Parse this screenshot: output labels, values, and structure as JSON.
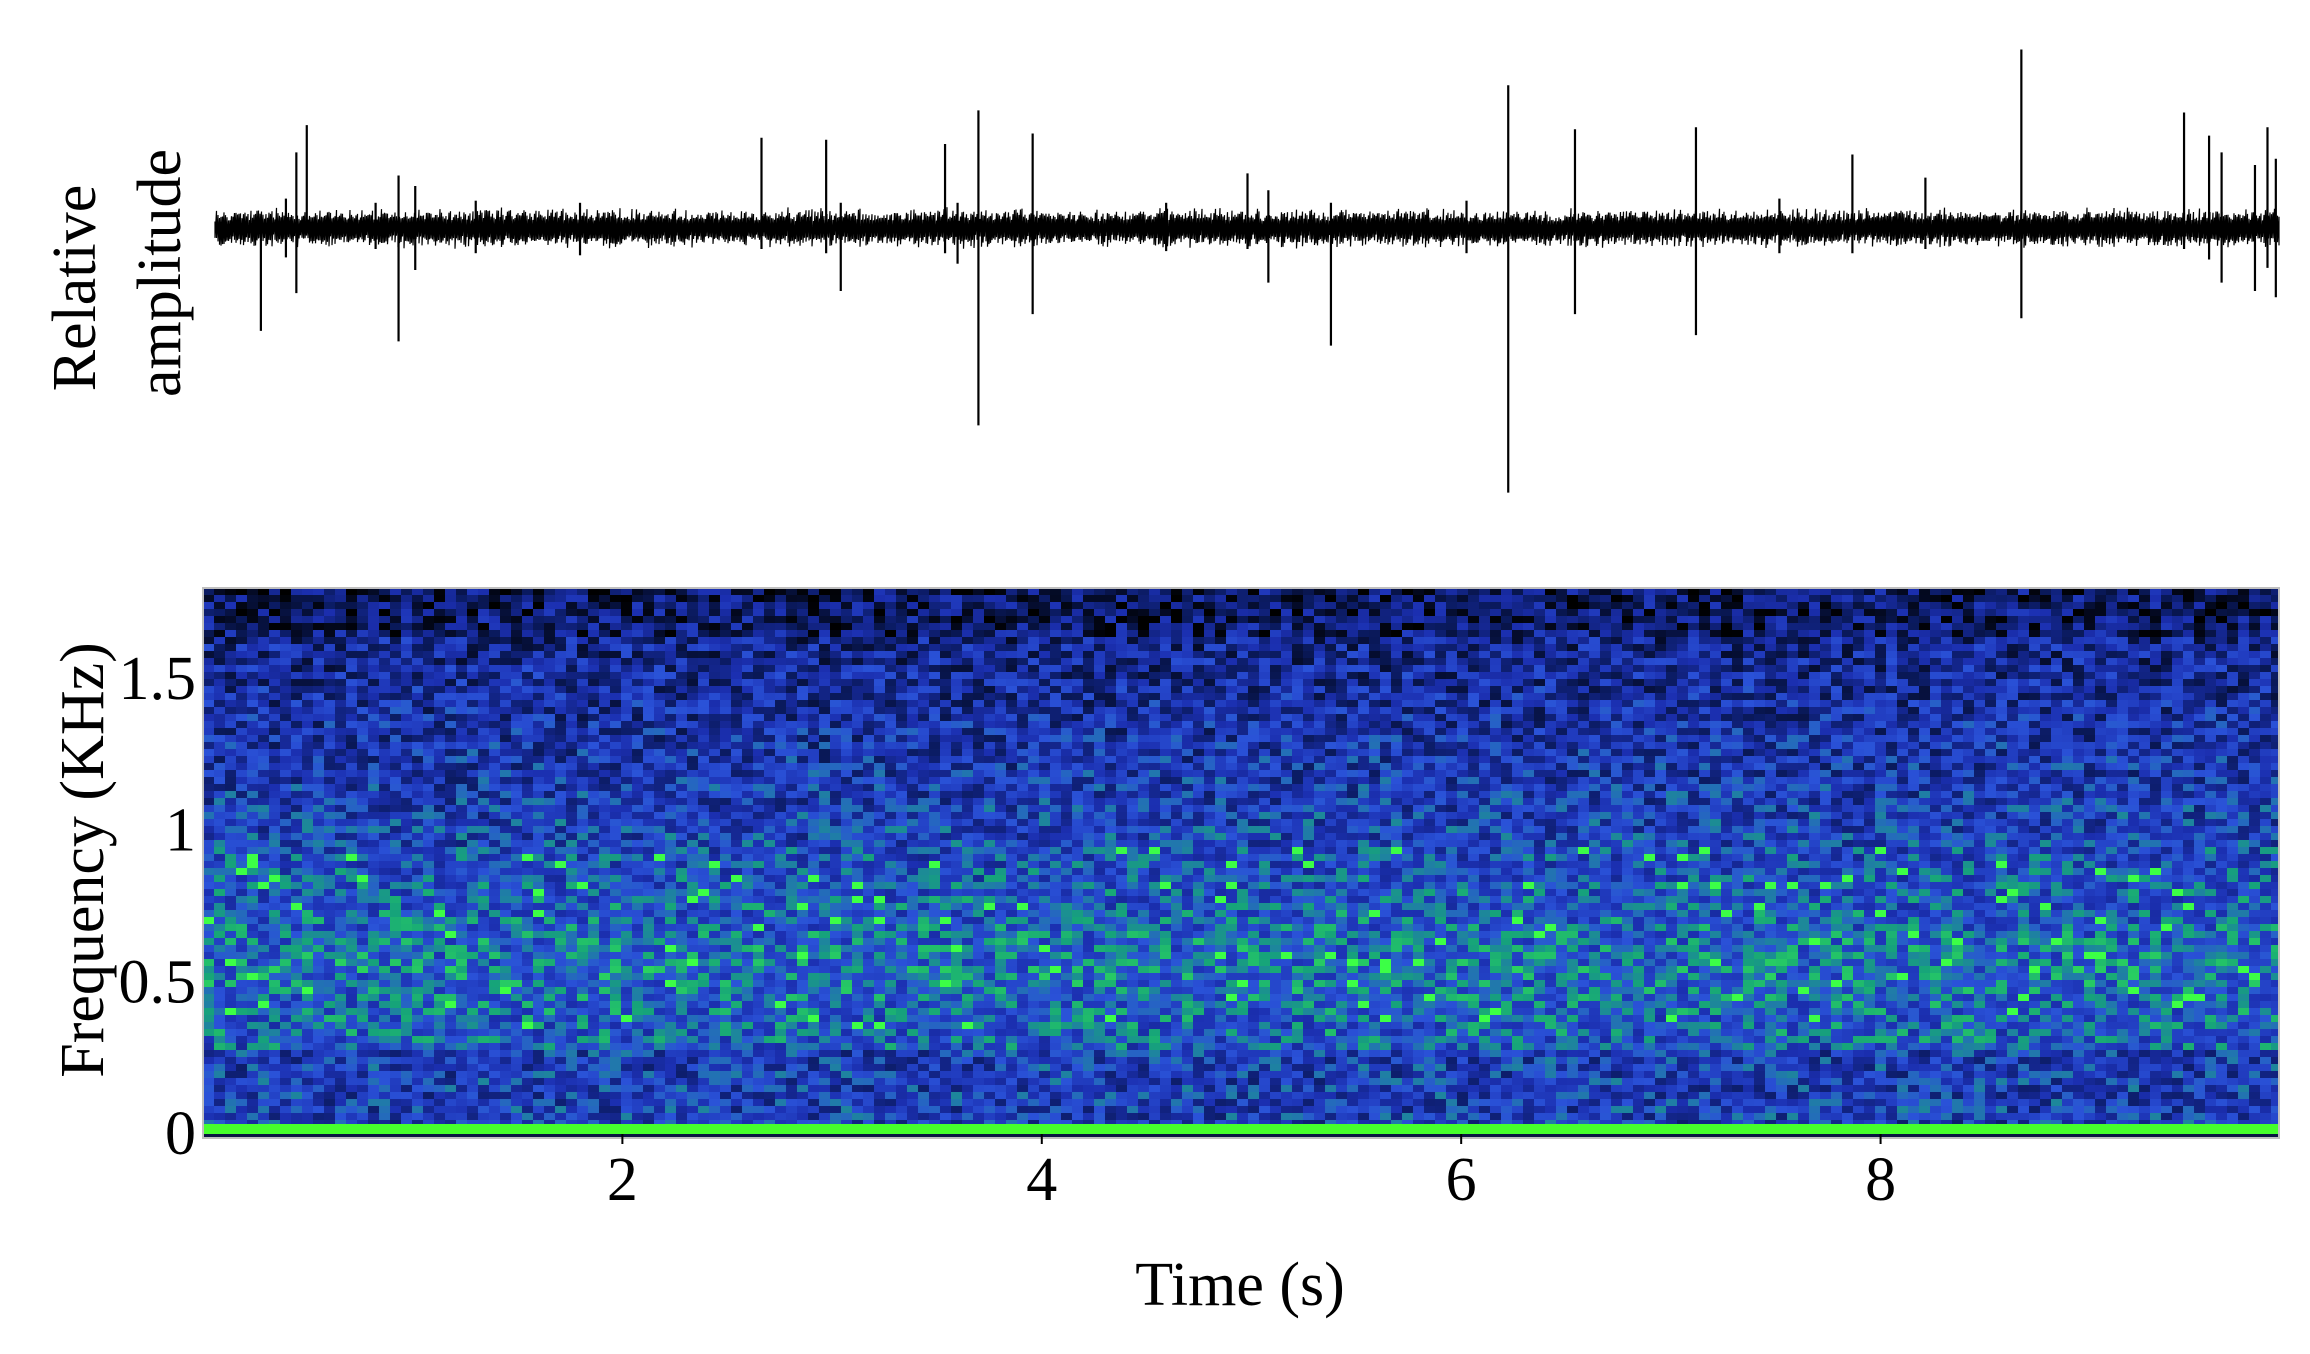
{
  "chart_data": [
    {
      "type": "line",
      "panel": "waveform",
      "title": "",
      "ylabel_lines": [
        "Relative",
        "amplitude"
      ],
      "xlim": [
        0,
        9.9
      ],
      "baseline_noise_amplitude": 0.1,
      "series": [
        {
          "color": "#000000",
          "spikes": [
            {
              "t": 0.22,
              "up": 0.0,
              "down": -0.49
            },
            {
              "t": 0.34,
              "up": 0.14,
              "down": -0.14
            },
            {
              "t": 0.39,
              "up": 0.36,
              "down": -0.31
            },
            {
              "t": 0.44,
              "up": 0.49,
              "down": 0.0
            },
            {
              "t": 0.77,
              "up": 0.12,
              "down": -0.1
            },
            {
              "t": 0.88,
              "up": 0.25,
              "down": -0.54
            },
            {
              "t": 0.96,
              "up": 0.2,
              "down": -0.2
            },
            {
              "t": 1.25,
              "up": 0.13,
              "down": -0.12
            },
            {
              "t": 1.75,
              "up": 0.12,
              "down": -0.13
            },
            {
              "t": 2.62,
              "up": 0.43,
              "down": -0.1
            },
            {
              "t": 2.93,
              "up": 0.42,
              "down": -0.12
            },
            {
              "t": 3.0,
              "up": 0.12,
              "down": -0.3
            },
            {
              "t": 3.5,
              "up": 0.4,
              "down": -0.12
            },
            {
              "t": 3.56,
              "up": 0.12,
              "down": -0.17
            },
            {
              "t": 3.66,
              "up": 0.56,
              "down": -0.94
            },
            {
              "t": 3.92,
              "up": 0.45,
              "down": -0.41
            },
            {
              "t": 4.56,
              "up": 0.12,
              "down": -0.11
            },
            {
              "t": 4.95,
              "up": 0.26,
              "down": -0.1
            },
            {
              "t": 5.05,
              "up": 0.18,
              "down": -0.26
            },
            {
              "t": 5.35,
              "up": 0.12,
              "down": -0.56
            },
            {
              "t": 6.0,
              "up": 0.13,
              "down": -0.12
            },
            {
              "t": 6.2,
              "up": 0.68,
              "down": -1.26
            },
            {
              "t": 6.52,
              "up": 0.47,
              "down": -0.41
            },
            {
              "t": 7.1,
              "up": 0.48,
              "down": -0.51
            },
            {
              "t": 7.5,
              "up": 0.14,
              "down": -0.12
            },
            {
              "t": 7.85,
              "up": 0.35,
              "down": -0.12
            },
            {
              "t": 8.2,
              "up": 0.24,
              "down": -0.1
            },
            {
              "t": 8.66,
              "up": 0.85,
              "down": -0.43
            },
            {
              "t": 9.44,
              "up": 0.55,
              "down": -0.1
            },
            {
              "t": 9.56,
              "up": 0.44,
              "down": -0.15
            },
            {
              "t": 9.62,
              "up": 0.36,
              "down": -0.26
            },
            {
              "t": 9.78,
              "up": 0.3,
              "down": -0.3
            },
            {
              "t": 9.84,
              "up": 0.48,
              "down": -0.19
            },
            {
              "t": 9.88,
              "up": 0.33,
              "down": -0.33
            }
          ]
        }
      ]
    },
    {
      "type": "heatmap",
      "panel": "spectrogram",
      "title": "",
      "xlabel": "Time (s)",
      "ylabel": "Frequency (KHz)",
      "xlim": [
        0,
        9.9
      ],
      "ylim": [
        0,
        1.8
      ],
      "xticks": [
        2,
        4,
        6,
        8
      ],
      "xtick_labels": [
        "2",
        "4",
        "6",
        "8"
      ],
      "yticks": [
        0,
        0.5,
        1,
        1.5
      ],
      "ytick_labels": [
        "0",
        "0.5",
        "1",
        "1.5"
      ],
      "colormap": [
        "#000000",
        "#0a1a5e",
        "#1b2fb0",
        "#2a52d8",
        "#16a37a",
        "#3cff46"
      ],
      "energy_band_khz": [
        0.3,
        0.95
      ],
      "peak_band_khz": 0.55,
      "baseline_line_color": "#46ff2c"
    }
  ]
}
